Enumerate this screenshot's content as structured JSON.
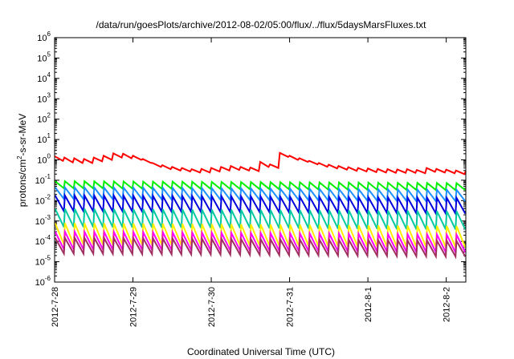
{
  "chart_data": {
    "type": "line",
    "title": "/data/run/goesPlots/archive/2012-08-02/05:00/flux/../flux/5daysMarsFluxes.txt",
    "xlabel": "Coordinated Universal Time (UTC)",
    "ylabel": {
      "pre": "protons/cm",
      "sup": "2",
      "post": "-s-sr-MeV"
    },
    "y_scale": "log",
    "ylim": [
      1e-06,
      1000000.0
    ],
    "y_ticks": [
      {
        "value": 1e-06,
        "base": "10",
        "exp": "-6"
      },
      {
        "value": 1e-05,
        "base": "10",
        "exp": "-5"
      },
      {
        "value": 0.0001,
        "base": "10",
        "exp": "-4"
      },
      {
        "value": 0.001,
        "base": "10",
        "exp": "-3"
      },
      {
        "value": 0.01,
        "base": "10",
        "exp": "-2"
      },
      {
        "value": 0.1,
        "base": "10",
        "exp": "-1"
      },
      {
        "value": 1,
        "base": "10",
        "exp": "0"
      },
      {
        "value": 10.0,
        "base": "10",
        "exp": "1"
      },
      {
        "value": 100.0,
        "base": "10",
        "exp": "2"
      },
      {
        "value": 1000.0,
        "base": "10",
        "exp": "3"
      },
      {
        "value": 10000.0,
        "base": "10",
        "exp": "4"
      },
      {
        "value": 100000.0,
        "base": "10",
        "exp": "5"
      },
      {
        "value": 1000000.0,
        "base": "10",
        "exp": "6"
      }
    ],
    "xlim": [
      "2012-07-28",
      "2012-08-02T06:00"
    ],
    "x_ticks": [
      {
        "value": "2012-07-28",
        "label": "2012-7-28"
      },
      {
        "value": "2012-07-29",
        "label": "2012-7-29"
      },
      {
        "value": "2012-07-30",
        "label": "2012-7-30"
      },
      {
        "value": "2012-07-31",
        "label": "2012-7-31"
      },
      {
        "value": "2012-08-01",
        "label": "2012-8-1"
      },
      {
        "value": "2012-08-02",
        "label": "2012-8-2"
      }
    ],
    "grid": false,
    "legend": false,
    "sawtooth_period_hours": 3,
    "series": [
      {
        "color": "#ff0000",
        "style": "sawtooth-peaks",
        "x": [
          "2012-07-28T00:00",
          "2012-07-28T03:00",
          "2012-07-28T06:00",
          "2012-07-28T09:00",
          "2012-07-28T12:00",
          "2012-07-28T15:00",
          "2012-07-28T18:00",
          "2012-07-28T21:00",
          "2012-07-29T00:00",
          "2012-07-29T03:00",
          "2012-07-29T06:00",
          "2012-07-29T09:00",
          "2012-07-29T12:00",
          "2012-07-29T15:00",
          "2012-07-29T18:00",
          "2012-07-29T21:00",
          "2012-07-30T00:00",
          "2012-07-30T03:00",
          "2012-07-30T06:00",
          "2012-07-30T09:00",
          "2012-07-30T12:00",
          "2012-07-30T15:00",
          "2012-07-30T18:00",
          "2012-07-30T21:00",
          "2012-07-31T00:00",
          "2012-07-31T03:00",
          "2012-07-31T06:00",
          "2012-07-31T09:00",
          "2012-07-31T12:00",
          "2012-07-31T15:00",
          "2012-07-31T18:00",
          "2012-07-31T21:00",
          "2012-08-01T00:00",
          "2012-08-01T03:00",
          "2012-08-01T06:00",
          "2012-08-01T09:00",
          "2012-08-01T12:00",
          "2012-08-01T15:00",
          "2012-08-01T18:00",
          "2012-08-01T21:00",
          "2012-08-02T00:00",
          "2012-08-02T03:00",
          "2012-08-02T06:00"
        ],
        "values": [
          1.5,
          1.3,
          1.2,
          1.1,
          1.3,
          1.6,
          2.1,
          2.0,
          1.6,
          1.1,
          0.7,
          0.55,
          0.45,
          0.4,
          0.35,
          0.36,
          0.4,
          0.45,
          0.5,
          0.45,
          0.42,
          0.8,
          0.6,
          2.2,
          1.6,
          1.2,
          0.9,
          0.7,
          0.58,
          0.5,
          0.44,
          0.4,
          0.38,
          0.36,
          0.35,
          0.34,
          0.35,
          0.32,
          0.4,
          0.36,
          0.33,
          0.3,
          0.28
        ],
        "dips": [
          0.9,
          0.75,
          0.7,
          0.7,
          0.85,
          1.0,
          1.3,
          1.2,
          1.0,
          0.7,
          0.45,
          0.35,
          0.3,
          0.27,
          0.24,
          0.24,
          0.27,
          0.3,
          0.32,
          0.3,
          0.28,
          0.45,
          0.4,
          1.4,
          1.0,
          0.8,
          0.6,
          0.46,
          0.38,
          0.33,
          0.29,
          0.27,
          0.25,
          0.24,
          0.23,
          0.23,
          0.23,
          0.22,
          0.26,
          0.24,
          0.22,
          0.2,
          0.19
        ]
      },
      {
        "color": "#00ee00",
        "style": "sawtooth",
        "peak": 0.09,
        "trough": 0.04,
        "end_factor": 0.8
      },
      {
        "color": "#1e90ff",
        "style": "sawtooth",
        "peak": 0.045,
        "trough": 0.012,
        "end_factor": 0.75
      },
      {
        "color": "#0000dd",
        "style": "sawtooth",
        "peak": 0.018,
        "trough": 0.003,
        "end_factor": 0.75
      },
      {
        "color": "#00c8a0",
        "style": "sawtooth",
        "peak": 0.004,
        "trough": 0.0005,
        "end_factor": 0.75
      },
      {
        "color": "#ffee00",
        "style": "sawtooth",
        "peak": 0.0008,
        "trough": 7e-05,
        "end_factor": 0.7
      },
      {
        "color": "#ff00ff",
        "style": "sawtooth",
        "peak": 0.0003,
        "trough": 4e-05,
        "end_factor": 0.7
      },
      {
        "color": "#a03060",
        "style": "sawtooth",
        "peak": 0.00015,
        "trough": 2.5e-05,
        "end_factor": 0.7
      }
    ]
  }
}
